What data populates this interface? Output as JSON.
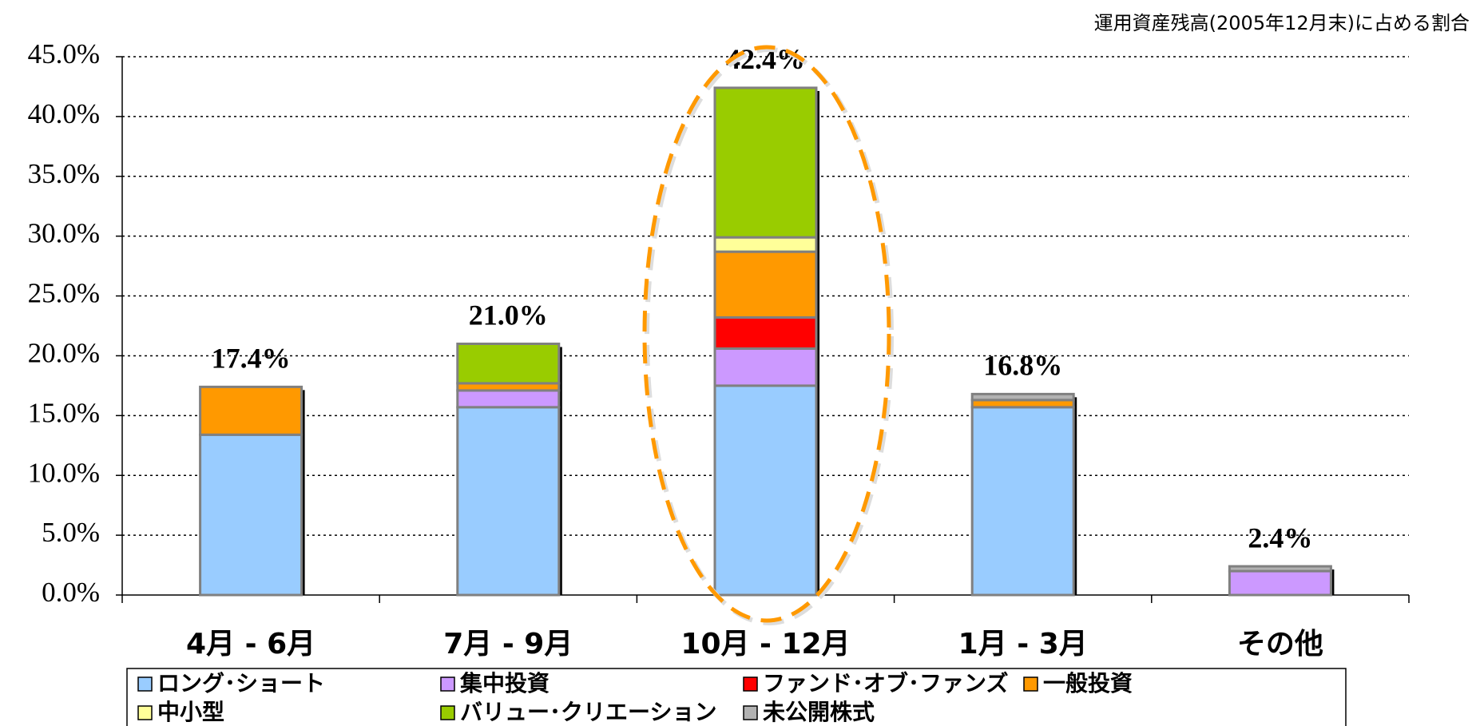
{
  "chart_data": {
    "type": "stacked_bar",
    "subtitle": "運用資産残高(2005年12月末)に占める割合",
    "categories": [
      "4月 - 6月",
      "7月 - 9月",
      "10月 - 12月",
      "1月 - 3月",
      "その他"
    ],
    "series": [
      {
        "name": "ロング･ショート",
        "color": "#99ccff",
        "values": [
          13.4,
          15.7,
          17.5,
          15.7,
          0
        ]
      },
      {
        "name": "集中投資",
        "color": "#cc99ff",
        "values": [
          0,
          1.4,
          3.1,
          0,
          2.0
        ]
      },
      {
        "name": "ファンド･オブ･ファンズ",
        "color": "#ff0000",
        "values": [
          0,
          0,
          2.6,
          0,
          0
        ]
      },
      {
        "name": "一般投資",
        "color": "#ff9900",
        "values": [
          4.0,
          0.6,
          5.5,
          0.6,
          0
        ]
      },
      {
        "name": "中小型",
        "color": "#ffff99",
        "values": [
          0,
          0,
          1.2,
          0,
          0
        ]
      },
      {
        "name": "バリュー･クリエーション",
        "color": "#99cc00",
        "values": [
          0,
          3.3,
          12.5,
          0,
          0
        ]
      },
      {
        "name": "未公開株式",
        "color": "#b2b2b2",
        "values": [
          0,
          0,
          0,
          0.5,
          0.4
        ]
      }
    ],
    "totals": [
      17.4,
      21.0,
      42.4,
      16.8,
      2.4
    ],
    "total_labels": [
      "17.4%",
      "21.0%",
      "42.4%",
      "16.8%",
      "2.4%"
    ],
    "ylim": [
      0,
      45
    ],
    "yticks": [
      {
        "value": 0,
        "label": "0.0%"
      },
      {
        "value": 5,
        "label": "5.0%"
      },
      {
        "value": 10,
        "label": "10.0%"
      },
      {
        "value": 15,
        "label": "15.0%"
      },
      {
        "value": 20,
        "label": "20.0%"
      },
      {
        "value": 25,
        "label": "25.0%"
      },
      {
        "value": 30,
        "label": "30.0%"
      },
      {
        "value": 35,
        "label": "35.0%"
      },
      {
        "value": 40,
        "label": "40.0%"
      },
      {
        "value": 45,
        "label": "45.0%"
      }
    ],
    "grid": true
  }
}
